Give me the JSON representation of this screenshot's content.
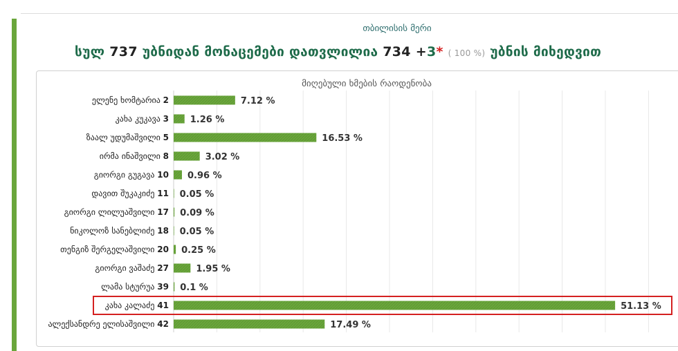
{
  "page": {
    "subtitle": "თბილისის მერი",
    "headline": {
      "part1": "სულ",
      "total": "737",
      "part2": "უბნიდან მონაცემები დათვლილია",
      "counted": "734",
      "plus": "+",
      "extra": "3",
      "star": "*",
      "percent": "( 100 %)",
      "part3": "უბნის მიხედვით"
    }
  },
  "chart_data": {
    "type": "bar",
    "orientation": "horizontal",
    "title": "მიღებული ხმების რაოდენობა",
    "categories": [
      "ელენე ხომტარია 2",
      "კახა კუკავა 3",
      "ზაალ უდუმაშვილი 5",
      "ირმა ინაშვილი 8",
      "გიორგი გუგავა 10",
      "დავით შუკაკიძე 11",
      "გიორგი ლილუაშვილი 17",
      "ნიკოლოზ სანებლიძე 18",
      "თენგიზ შერგელაშვილი 20",
      "გიორგი ვაშაძე 27",
      "ლამა სტურუა 39",
      "კახა კალაძე 41",
      "ალექსანდრე ელისაშვილი 42"
    ],
    "values": [
      7.12,
      1.26,
      16.53,
      3.02,
      0.96,
      0.05,
      0.09,
      0.05,
      0.25,
      1.95,
      0.1,
      51.13,
      17.49
    ],
    "value_labels": [
      "7.12 %",
      "1.26 %",
      "16.53 %",
      "3.02 %",
      "0.96 %",
      "0.05 %",
      "0.09 %",
      "0.05 %",
      "0.25 %",
      "1.95 %",
      "0.1 %",
      "51.13 %",
      "17.49 %"
    ],
    "xlim": [
      0,
      100
    ],
    "grid": true,
    "highlighted": "კახა კალაძე 41",
    "colors": {
      "bar": "#6aa63b",
      "highlight_border": "#d42020",
      "grid": "#e8e8e8"
    }
  }
}
